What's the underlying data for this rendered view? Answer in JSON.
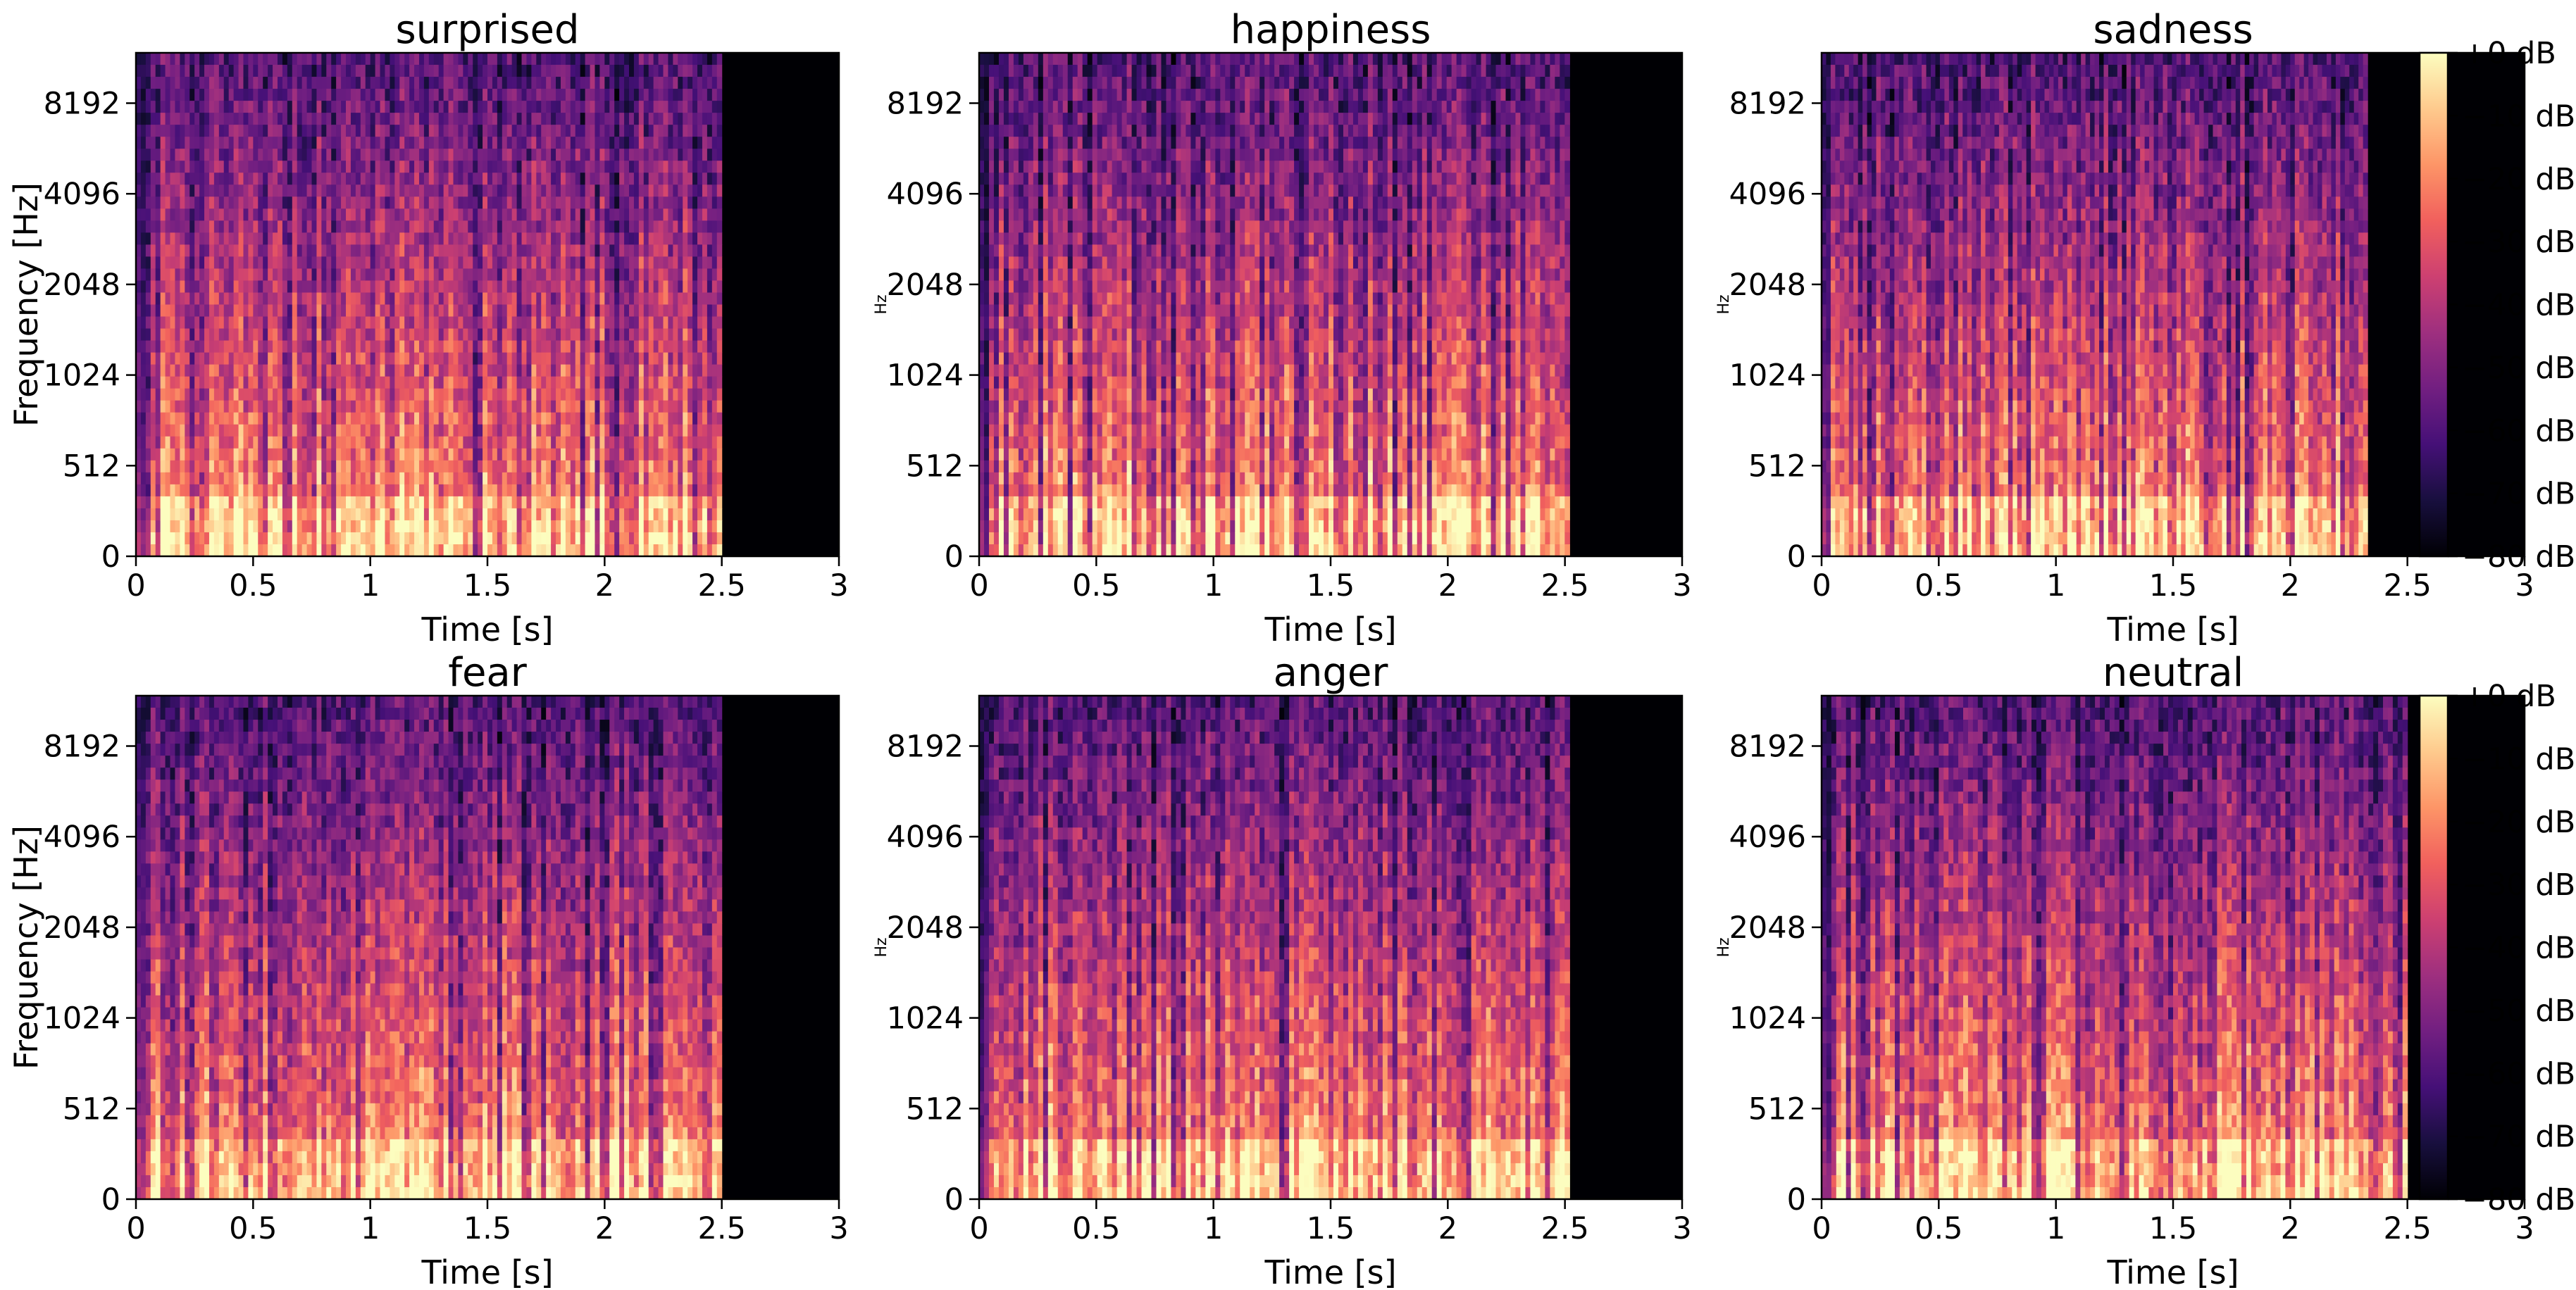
{
  "figure": {
    "background": "#ffffff"
  },
  "chart_data": [
    {
      "type": "heatmap",
      "title": "surprised",
      "xlabel": "Time [s]",
      "ylabel": "Frequency [Hz]",
      "xlim": [
        0,
        3
      ],
      "xticks": [
        "0",
        "0.5",
        "1",
        "1.5",
        "2",
        "2.5",
        "3"
      ],
      "yscale": "log-like (mel)",
      "yticks": [
        "0",
        "512",
        "1024",
        "2048",
        "4096",
        "8192"
      ],
      "signal_end_s": 2.5,
      "grid": false
    },
    {
      "type": "heatmap",
      "title": "happiness",
      "xlabel": "Time [s]",
      "ylabel": "Hz",
      "xlim": [
        0,
        3
      ],
      "xticks": [
        "0",
        "0.5",
        "1",
        "1.5",
        "2",
        "2.5",
        "3"
      ],
      "yscale": "log-like (mel)",
      "yticks": [
        "0",
        "512",
        "1024",
        "2048",
        "4096",
        "8192"
      ],
      "signal_end_s": 2.52,
      "grid": false
    },
    {
      "type": "heatmap",
      "title": "sadness",
      "xlabel": "Time [s]",
      "ylabel": "Hz",
      "xlim": [
        0,
        3
      ],
      "xticks": [
        "0",
        "0.5",
        "1",
        "1.5",
        "2",
        "2.5",
        "3"
      ],
      "yscale": "log-like (mel)",
      "yticks": [
        "0",
        "512",
        "1024",
        "2048",
        "4096",
        "8192"
      ],
      "signal_end_s": 2.33,
      "grid": false
    },
    {
      "type": "heatmap",
      "title": "fear",
      "xlabel": "Time [s]",
      "ylabel": "Frequency [Hz]",
      "xlim": [
        0,
        3
      ],
      "xticks": [
        "0",
        "0.5",
        "1",
        "1.5",
        "2",
        "2.5",
        "3"
      ],
      "yscale": "log-like (mel)",
      "yticks": [
        "0",
        "512",
        "1024",
        "2048",
        "4096",
        "8192"
      ],
      "signal_end_s": 2.5,
      "grid": false
    },
    {
      "type": "heatmap",
      "title": "anger",
      "xlabel": "Time [s]",
      "ylabel": "Hz",
      "xlim": [
        0,
        3
      ],
      "xticks": [
        "0",
        "0.5",
        "1",
        "1.5",
        "2",
        "2.5",
        "3"
      ],
      "yscale": "log-like (mel)",
      "yticks": [
        "0",
        "512",
        "1024",
        "2048",
        "4096",
        "8192"
      ],
      "signal_end_s": 2.52,
      "grid": false
    },
    {
      "type": "heatmap",
      "title": "neutral",
      "xlabel": "Time [s]",
      "ylabel": "Hz",
      "xlim": [
        0,
        3
      ],
      "xticks": [
        "0",
        "0.5",
        "1",
        "1.5",
        "2",
        "2.5",
        "3"
      ],
      "yscale": "log-like (mel)",
      "yticks": [
        "0",
        "512",
        "1024",
        "2048",
        "4096",
        "8192"
      ],
      "signal_end_s": 2.5,
      "grid": false
    }
  ],
  "colorbar": {
    "colormap": "magma",
    "range_db": [
      -80,
      0
    ],
    "ticks": [
      "+0 dB",
      "−10 dB",
      "−20 dB",
      "−30 dB",
      "−40 dB",
      "−50 dB",
      "−60 dB",
      "−70 dB",
      "−80 dB"
    ],
    "stops": [
      "#000004",
      "#180f3e",
      "#451077",
      "#721f81",
      "#9e2f7f",
      "#cd4071",
      "#f1605d",
      "#fd9567",
      "#feca8d",
      "#fcfdbf"
    ]
  }
}
